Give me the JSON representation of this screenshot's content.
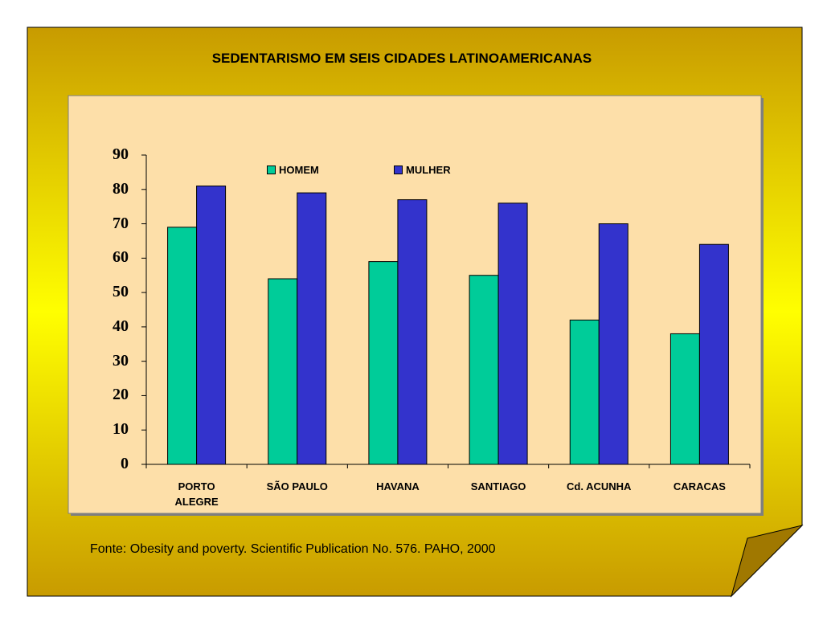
{
  "slide": {
    "colors": {
      "frame_edge": "#c89b00",
      "frame_center": "#ffff00",
      "plot_bg": "#fddfa9"
    }
  },
  "chart_data": {
    "type": "bar",
    "title": "SEDENTARISMO  EM SEIS CIDADES LATINOAMERICANAS",
    "categories": [
      "PORTO\nALEGRE",
      "SÃO PAULO",
      "HAVANA",
      "SANTIAGO",
      "Cd. ACUNHA",
      "CARACAS"
    ],
    "series": [
      {
        "name": "HOMEM",
        "color": "#00cc99",
        "values": [
          69,
          54,
          59,
          55,
          42,
          38
        ]
      },
      {
        "name": "MULHER",
        "color": "#3333cc",
        "values": [
          81,
          79,
          77,
          76,
          70,
          64
        ]
      }
    ],
    "ylim": [
      0,
      90
    ],
    "yticks": [
      0,
      10,
      20,
      30,
      40,
      50,
      60,
      70,
      80,
      90
    ],
    "legend_position": "top",
    "grid": false,
    "source": "Fonte:  Obesity  and  poverty. Scientific  Publication  No. 576. PAHO, 2000"
  }
}
